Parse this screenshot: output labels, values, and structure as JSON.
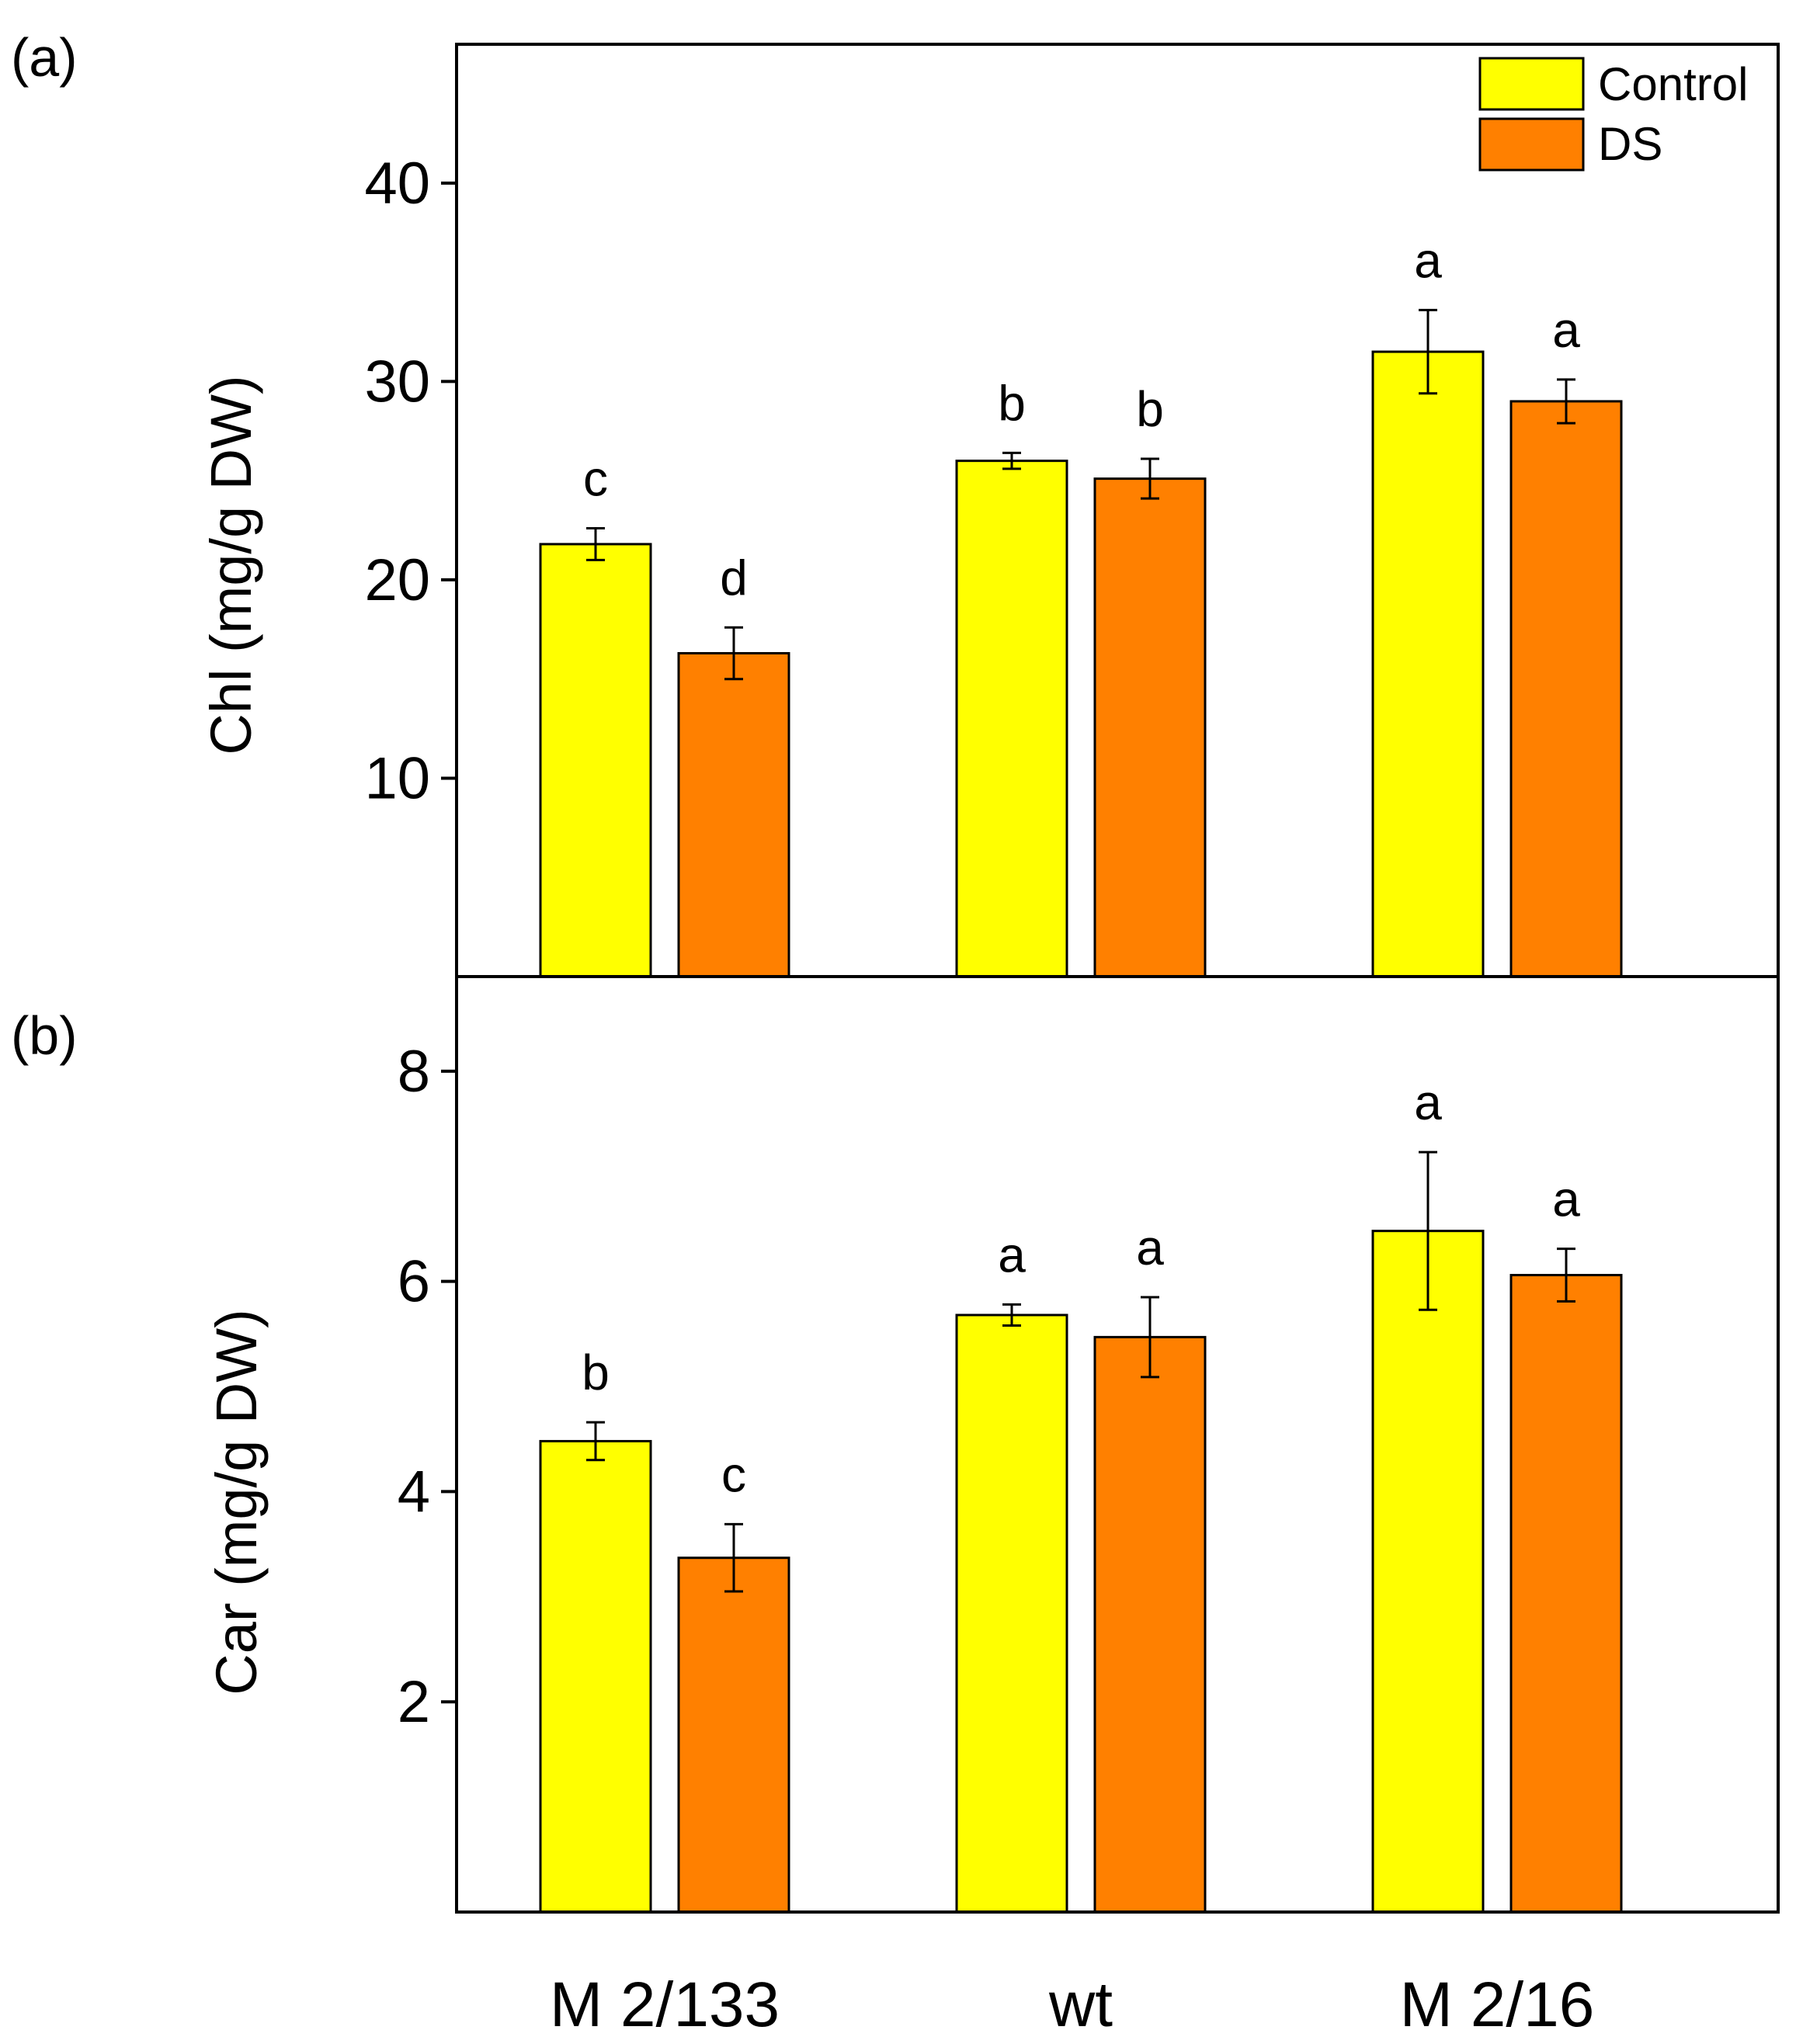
{
  "colors": {
    "control": "#FFFF00",
    "ds": "#FF8000",
    "stroke": "#000000"
  },
  "chart_data": [
    {
      "type": "bar",
      "panel_label": "(a)",
      "ylabel": "Chl (mg/g DW)",
      "ylim": [
        0,
        47
      ],
      "yticks": [
        10,
        20,
        30,
        40
      ],
      "categories": [
        "M 2/133",
        "wt",
        "M 2/16"
      ],
      "legend": {
        "position": "top-right",
        "entries": [
          "Control",
          "DS"
        ]
      },
      "series": [
        {
          "name": "Control",
          "values": [
            21.8,
            26.0,
            31.5
          ],
          "errors": [
            0.8,
            0.4,
            2.1
          ],
          "letters": [
            "c",
            "b",
            "a"
          ]
        },
        {
          "name": "DS",
          "values": [
            16.3,
            25.1,
            29.0
          ],
          "errors": [
            1.3,
            1.0,
            1.1
          ],
          "letters": [
            "d",
            "b",
            "a"
          ]
        }
      ]
    },
    {
      "type": "bar",
      "panel_label": "(b)",
      "ylabel": "Car (mg/g DW)",
      "ylim": [
        0,
        8.9
      ],
      "yticks": [
        2,
        4,
        6,
        8
      ],
      "categories": [
        "M 2/133",
        "wt",
        "M 2/16"
      ],
      "series": [
        {
          "name": "Control",
          "values": [
            4.48,
            5.68,
            6.48
          ],
          "errors": [
            0.18,
            0.1,
            0.75
          ],
          "letters": [
            "b",
            "a",
            "a"
          ]
        },
        {
          "name": "DS",
          "values": [
            3.37,
            5.47,
            6.06
          ],
          "errors": [
            0.32,
            0.38,
            0.25
          ],
          "letters": [
            "c",
            "a",
            "a"
          ]
        }
      ]
    }
  ]
}
